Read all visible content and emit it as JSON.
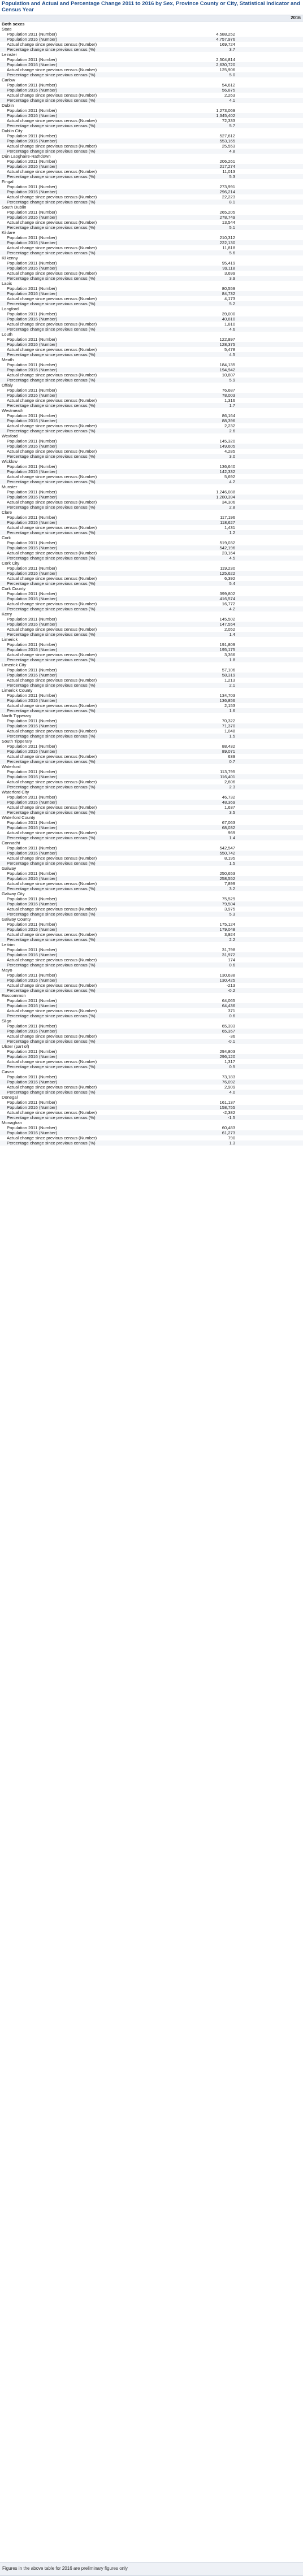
{
  "title": "Population and Actual and Percentage Change 2011 to 2016 by Sex, Province County or City, Statistical Indicator and Census Year",
  "column_header": "2016",
  "group_label": "Both sexes",
  "indicators": [
    "Population 2011 (Number)",
    "Population 2016 (Number)",
    "Actual change since previous census (Number)",
    "Percentage change since previous census (%)"
  ],
  "areas": [
    {
      "name": "State",
      "values": [
        "4,588,252",
        "4,757,976",
        "169,724",
        "3.7"
      ]
    },
    {
      "name": "Leinster",
      "values": [
        "2,504,814",
        "2,630,720",
        "125,906",
        "5.0"
      ]
    },
    {
      "name": "Carlow",
      "values": [
        "54,612",
        "56,875",
        "2,263",
        "4.1"
      ]
    },
    {
      "name": "Dublin",
      "values": [
        "1,273,069",
        "1,345,402",
        "72,333",
        "5.7"
      ]
    },
    {
      "name": "Dublin City",
      "values": [
        "527,612",
        "553,165",
        "25,553",
        "4.8"
      ]
    },
    {
      "name": "Dún Laoghaire-Rathdown",
      "values": [
        "206,261",
        "217,274",
        "11,013",
        "5.3"
      ]
    },
    {
      "name": "Fingal",
      "values": [
        "273,991",
        "296,214",
        "22,223",
        "8.1"
      ]
    },
    {
      "name": "South Dublin",
      "values": [
        "265,205",
        "278,749",
        "13,544",
        "5.1"
      ]
    },
    {
      "name": "Kildare",
      "values": [
        "210,312",
        "222,130",
        "11,818",
        "5.6"
      ]
    },
    {
      "name": "Kilkenny",
      "values": [
        "95,419",
        "99,118",
        "3,699",
        "3.9"
      ]
    },
    {
      "name": "Laois",
      "values": [
        "80,559",
        "84,732",
        "4,173",
        "5.2"
      ]
    },
    {
      "name": "Longford",
      "values": [
        "39,000",
        "40,810",
        "1,810",
        "4.6"
      ]
    },
    {
      "name": "Louth",
      "values": [
        "122,897",
        "128,375",
        "5,478",
        "4.5"
      ]
    },
    {
      "name": "Meath",
      "values": [
        "184,135",
        "194,942",
        "10,807",
        "5.9"
      ]
    },
    {
      "name": "Offaly",
      "values": [
        "76,687",
        "78,003",
        "1,316",
        "1.7"
      ]
    },
    {
      "name": "Westmeath",
      "values": [
        "86,164",
        "88,396",
        "2,232",
        "2.6"
      ]
    },
    {
      "name": "Wexford",
      "values": [
        "145,320",
        "149,605",
        "4,285",
        "3.0"
      ]
    },
    {
      "name": "Wicklow",
      "values": [
        "136,640",
        "142,332",
        "5,692",
        "4.2"
      ]
    },
    {
      "name": "Munster",
      "values": [
        "1,246,088",
        "1,280,394",
        "34,306",
        "2.8"
      ]
    },
    {
      "name": "Clare",
      "values": [
        "117,196",
        "118,627",
        "1,431",
        "1.2"
      ]
    },
    {
      "name": "Cork",
      "values": [
        "519,032",
        "542,196",
        "23,164",
        "4.5"
      ]
    },
    {
      "name": "Cork City",
      "values": [
        "119,230",
        "125,622",
        "6,392",
        "5.4"
      ]
    },
    {
      "name": "Cork County",
      "values": [
        "399,802",
        "416,574",
        "16,772",
        "4.2"
      ]
    },
    {
      "name": "Kerry",
      "values": [
        "145,502",
        "147,554",
        "2,052",
        "1.4"
      ]
    },
    {
      "name": "Limerick",
      "values": [
        "191,809",
        "195,175",
        "3,366",
        "1.8"
      ]
    },
    {
      "name": "Limerick City",
      "values": [
        "57,106",
        "58,319",
        "1,213",
        "2.1"
      ]
    },
    {
      "name": "Limerick County",
      "values": [
        "134,703",
        "136,856",
        "2,153",
        "1.6"
      ]
    },
    {
      "name": "North Tipperary",
      "values": [
        "70,322",
        "71,370",
        "1,048",
        "1.5"
      ]
    },
    {
      "name": "South Tipperary",
      "values": [
        "88,432",
        "89,071",
        "639",
        "0.7"
      ]
    },
    {
      "name": "Waterford",
      "values": [
        "113,795",
        "116,401",
        "2,606",
        "2.3"
      ]
    },
    {
      "name": "Waterford City",
      "values": [
        "46,732",
        "48,369",
        "1,637",
        "3.5"
      ]
    },
    {
      "name": "Waterford County",
      "values": [
        "67,063",
        "68,032",
        "969",
        "1.4"
      ]
    },
    {
      "name": "Connacht",
      "values": [
        "542,547",
        "550,742",
        "8,195",
        "1.5"
      ]
    },
    {
      "name": "Galway",
      "values": [
        "250,653",
        "258,552",
        "7,899",
        "3.2"
      ]
    },
    {
      "name": "Galway City",
      "values": [
        "75,529",
        "79,504",
        "3,975",
        "5.3"
      ]
    },
    {
      "name": "Galway County",
      "values": [
        "175,124",
        "179,048",
        "3,924",
        "2.2"
      ]
    },
    {
      "name": "Leitrim",
      "values": [
        "31,798",
        "31,972",
        "174",
        "0.6"
      ]
    },
    {
      "name": "Mayo",
      "values": [
        "130,638",
        "130,425",
        "-213",
        "-0.2"
      ]
    },
    {
      "name": "Roscommon",
      "values": [
        "64,065",
        "64,436",
        "371",
        "0.6"
      ]
    },
    {
      "name": "Sligo",
      "values": [
        "65,393",
        "65,357",
        "-36",
        "-0.1"
      ]
    },
    {
      "name": "Ulster (part of)",
      "values": [
        "294,803",
        "296,120",
        "1,317",
        "0.5"
      ]
    },
    {
      "name": "Cavan",
      "values": [
        "73,183",
        "76,092",
        "2,909",
        "4.0"
      ]
    },
    {
      "name": "Donegal",
      "values": [
        "161,137",
        "158,755",
        "-2,382",
        "-1.5"
      ]
    },
    {
      "name": "Monaghan",
      "values": [
        "60,483",
        "61,273",
        "790",
        "1.3"
      ]
    }
  ],
  "footer_note": "Figures in the above table for 2016 are preliminary figures only"
}
